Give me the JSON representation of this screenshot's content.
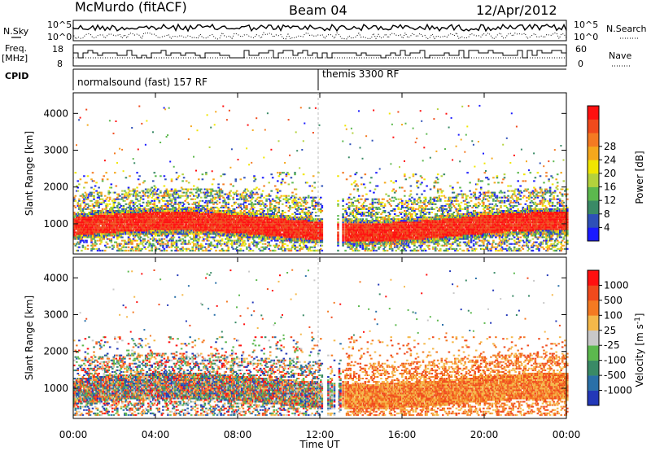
{
  "header": {
    "site": "McMurdo (fitACF)",
    "beam": "Beam 04",
    "date": "12/Apr/2012"
  },
  "summary": {
    "nsky_label": "N.Sky",
    "nsearch_label": "N.Search",
    "nsky_ticks": [
      "10^5",
      "10^0"
    ],
    "nsearch_ticks": [
      "10^5",
      "10^0"
    ],
    "freq_label": [
      "Freq.",
      "[MHz]"
    ],
    "freq_ticks": [
      "18",
      "8"
    ],
    "nave_label": "Nave",
    "nave_ticks": [
      "60",
      "0"
    ],
    "cpid_label": "CPID",
    "cpid_segments": [
      "normalsound (fast) 157 RF",
      "themis 3300 RF"
    ]
  },
  "chart_data": [
    {
      "type": "heatmap",
      "title": "",
      "xlabel": "Time UT",
      "ylabel": "Slant Range [km]",
      "x_ticks": [
        "00:00",
        "04:00",
        "08:00",
        "12:00",
        "16:00",
        "20:00",
        "00:00"
      ],
      "xlim_hours": [
        0,
        24
      ],
      "y_ticks": [
        "1000",
        "2000",
        "3000",
        "4000"
      ],
      "ylim_km": [
        180,
        4560
      ],
      "colorbar": {
        "label": "Power [dB]",
        "tick_labels": [
          "4",
          "8",
          "12",
          "16",
          "20",
          "24",
          "28"
        ],
        "colors": [
          "#1a1aff",
          "#2e50b8",
          "#3a8a66",
          "#5cb84e",
          "#b4d23c",
          "#f0e600",
          "#f5a81c",
          "#f47a22",
          "#f04a1c",
          "#ff1010"
        ]
      }
    },
    {
      "type": "heatmap",
      "title": "",
      "xlabel": "Time UT",
      "ylabel": "Slant Range [km]",
      "x_ticks": [
        "00:00",
        "04:00",
        "08:00",
        "12:00",
        "16:00",
        "20:00",
        "00:00"
      ],
      "xlim_hours": [
        0,
        24
      ],
      "y_ticks": [
        "1000",
        "2000",
        "3000",
        "4000"
      ],
      "ylim_km": [
        180,
        4560
      ],
      "colorbar": {
        "label": "Velocity [m s^-1]",
        "tick_labels": [
          "1000",
          "500",
          "100",
          "25",
          "-25",
          "-100",
          "-500",
          "-1000"
        ],
        "colors": [
          "#2338b8",
          "#2a70a8",
          "#3a8a66",
          "#5cb84e",
          "#c8c8c8",
          "#f5b84a",
          "#f47a22",
          "#f04a1c",
          "#ff1010"
        ]
      }
    }
  ]
}
